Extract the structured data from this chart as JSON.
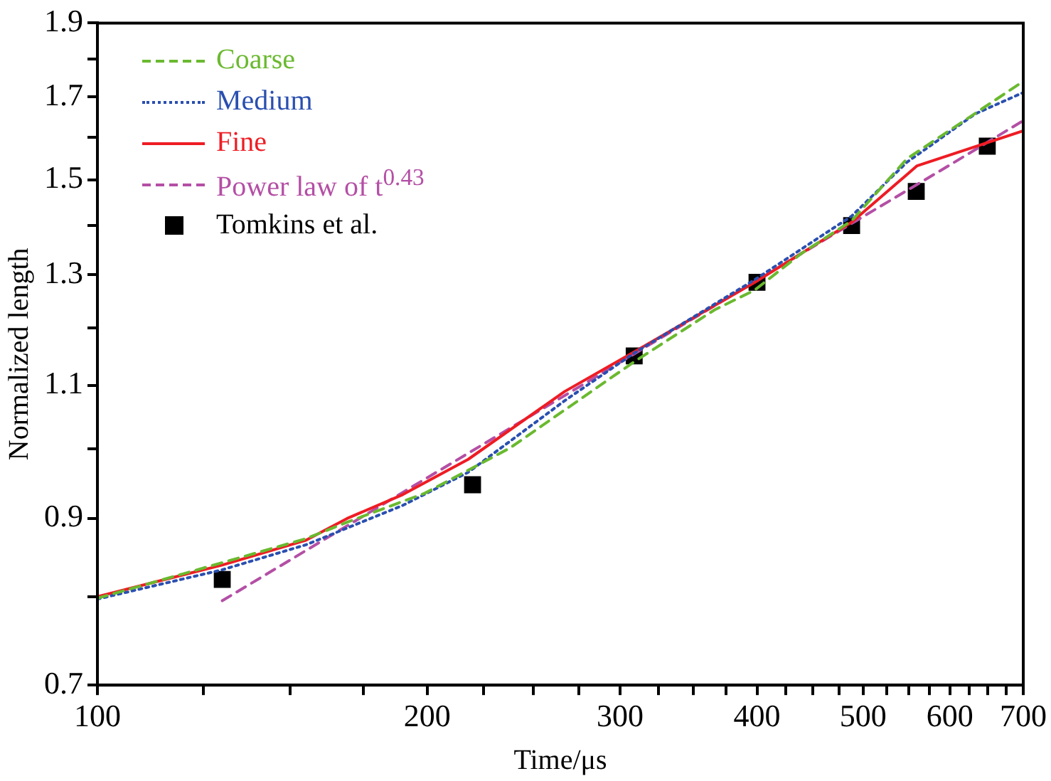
{
  "chart_data": {
    "type": "line",
    "xlabel": "Time/μs",
    "ylabel": "Normalized length",
    "log": "xy",
    "grid": false,
    "legend": "top left",
    "xlim": [
      100,
      700
    ],
    "xticks": [
      100,
      {
        "value": 125,
        "label": null
      },
      {
        "value": 150,
        "label": null
      },
      {
        "value": 175,
        "label": null
      },
      200,
      {
        "value": 225,
        "label": null
      },
      {
        "value": 250,
        "label": null
      },
      {
        "value": 275,
        "label": null
      },
      300,
      {
        "value": 325,
        "label": null
      },
      {
        "value": 350,
        "label": null
      },
      {
        "value": 375,
        "label": null
      },
      400,
      {
        "value": 425,
        "label": null
      },
      {
        "value": 450,
        "label": null
      },
      {
        "value": 475,
        "label": null
      },
      500,
      {
        "value": 525,
        "label": null
      },
      {
        "value": 550,
        "label": null
      },
      {
        "value": 575,
        "label": null
      },
      600,
      {
        "value": 625,
        "label": null
      },
      {
        "value": 650,
        "label": null
      },
      {
        "value": 675,
        "label": null
      },
      700
    ],
    "ylim": [
      0.7,
      1.9
    ],
    "yticks": [
      0.7,
      {
        "value": 0.8,
        "label": null
      },
      0.9,
      {
        "value": 1.0,
        "label": null
      },
      1.1,
      {
        "value": 1.2,
        "label": null
      },
      1.3,
      {
        "value": 1.4,
        "label": null
      },
      1.5,
      {
        "value": 1.6,
        "label": null
      },
      1.7,
      {
        "value": 1.8,
        "label": null
      },
      1.9
    ],
    "series": [
      {
        "name": "Coarse",
        "color": "#6ab92f",
        "line_style": "dashed",
        "marker": "none",
        "x": [
          100,
          130,
          155,
          169,
          199,
          238,
          309,
          366,
          398,
          439,
          488,
          548,
          700
        ],
        "values": [
          0.798,
          0.842,
          0.873,
          0.895,
          0.935,
          1.001,
          1.14,
          1.233,
          1.27,
          1.342,
          1.41,
          1.548,
          1.74
        ]
      },
      {
        "name": "Medium",
        "color": "#2a4fb0",
        "line_style": "dotted",
        "marker": "none",
        "x": [
          100,
          130,
          155,
          190,
          218,
          267,
          309,
          398,
          488,
          548,
          633,
          700
        ],
        "values": [
          0.797,
          0.833,
          0.865,
          0.918,
          0.965,
          1.075,
          1.155,
          1.29,
          1.42,
          1.54,
          1.657,
          1.711
        ]
      },
      {
        "name": "Fine",
        "color": "#ee1c24",
        "line_style": "solid",
        "marker": "none",
        "x": [
          100,
          130,
          155,
          169,
          190,
          218,
          267,
          309,
          398,
          488,
          560,
          700
        ],
        "values": [
          0.8,
          0.839,
          0.871,
          0.9,
          0.933,
          0.984,
          1.09,
          1.157,
          1.285,
          1.407,
          1.532,
          1.615
        ]
      },
      {
        "name": "Power law of t$^{0.43}$",
        "color": "#b44fa5",
        "line_style": "dashed",
        "marker": "none",
        "x": [
          130,
          200,
          300,
          400,
          500,
          600,
          700
        ],
        "values": [
          0.795,
          0.957,
          1.139,
          1.289,
          1.419,
          1.534,
          1.64
        ]
      },
      {
        "name": "Tomkins et al.",
        "type": "scatter",
        "color": "#000000",
        "marker": "square",
        "x": [
          130,
          220,
          309,
          400,
          488,
          559,
          649
        ],
        "values": [
          0.821,
          0.947,
          1.15,
          1.285,
          1.4,
          1.474,
          1.578
        ]
      }
    ]
  }
}
